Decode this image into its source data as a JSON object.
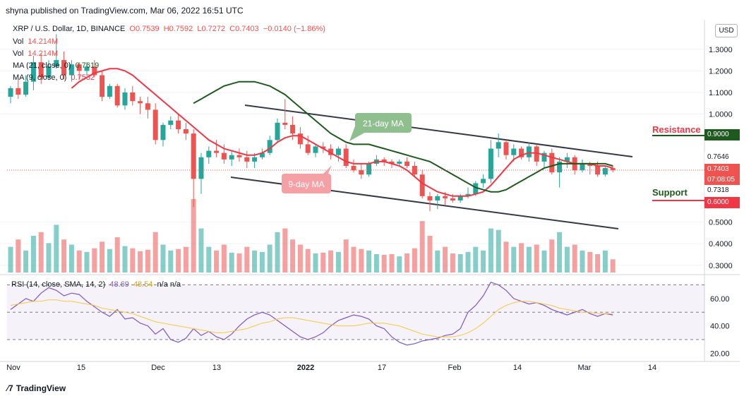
{
  "header": {
    "published": "shyna published on TradingView.com, Mar 06, 2022 16:51 UTC"
  },
  "legend": {
    "symbol": "XRP / U.S. Dollar, 1D, BINANCE",
    "open": "O0.7539",
    "high": "H0.7592",
    "low": "L0.7272",
    "close": "C0.7403",
    "change": "−0.0140 (−1.86%)",
    "vol1": "Vol",
    "vol1_value": "14.214M",
    "vol2": "Vol",
    "vol2_value": "14.214M",
    "ma21": "MA (21, close, 0)",
    "ma21_value": "0.7619",
    "ma9": "MA (9, close, 0)",
    "ma9_value": "0.7532"
  },
  "currency_button": "USD",
  "annotations": {
    "ma21_label": "21-day MA",
    "ma9_label": "9-day MA",
    "resistance": "Resistance",
    "support": "Support"
  },
  "price_tags": {
    "resistance_level": "0.9000",
    "ma21_tag": "0.7646",
    "last_price": "0.7403",
    "countdown": "07:08:05",
    "ma9_tag": "0.7318",
    "support_level": "0.6000"
  },
  "rsi_legend": {
    "name": "RSI (14, close, SMA, 14, 2)",
    "rsi": "48.69",
    "sma": "48.54",
    "na": "n/a n/a"
  },
  "footer": {
    "brand": "TradingView"
  },
  "colors": {
    "up": "#26a69a",
    "down": "#ef5350",
    "ma9": "#f23645",
    "ma21": "#1e5a1e",
    "rsi": "#7e57c2",
    "rsi_sma": "#f5c842",
    "resistance": "#1e5a1e",
    "support": "#f23645"
  },
  "chart_data": [
    {
      "type": "candlestick",
      "title": "XRP / U.S. Dollar, 1D, BINANCE",
      "x_ticks": [
        "Nov",
        "15",
        "Dec",
        "13",
        "2022",
        "17",
        "Feb",
        "14",
        "Mar",
        "14"
      ],
      "y_ticks": [
        "1.3000",
        "1.2000",
        "1.1000",
        "1.0000",
        "0.5000",
        "0.4000",
        "0.3000"
      ],
      "ylim": [
        0.26,
        1.43
      ],
      "candles": [
        [
          1.08,
          1.13,
          1.05,
          1.12
        ],
        [
          1.12,
          1.16,
          1.07,
          1.09
        ],
        [
          1.09,
          1.18,
          1.08,
          1.15
        ],
        [
          1.15,
          1.27,
          1.11,
          1.24
        ],
        [
          1.24,
          1.28,
          1.14,
          1.17
        ],
        [
          1.17,
          1.25,
          1.16,
          1.22
        ],
        [
          1.22,
          1.37,
          1.21,
          1.25
        ],
        [
          1.25,
          1.29,
          1.16,
          1.18
        ],
        [
          1.18,
          1.25,
          1.15,
          1.23
        ],
        [
          1.23,
          1.24,
          1.16,
          1.2
        ],
        [
          1.2,
          1.24,
          1.18,
          1.22
        ],
        [
          1.22,
          1.25,
          1.17,
          1.18
        ],
        [
          1.18,
          1.2,
          1.06,
          1.08
        ],
        [
          1.08,
          1.14,
          1.07,
          1.13
        ],
        [
          1.13,
          1.14,
          1.03,
          1.04
        ],
        [
          1.04,
          1.12,
          1.02,
          1.1
        ],
        [
          1.1,
          1.13,
          1.04,
          1.06
        ],
        [
          1.06,
          1.08,
          1.0,
          1.05
        ],
        [
          1.05,
          1.08,
          0.98,
          1.02
        ],
        [
          1.02,
          1.05,
          0.86,
          0.88
        ],
        [
          0.88,
          0.96,
          0.85,
          0.95
        ],
        [
          0.95,
          0.99,
          0.93,
          0.97
        ],
        [
          0.97,
          1.0,
          0.91,
          0.93
        ],
        [
          0.93,
          0.96,
          0.88,
          0.91
        ],
        [
          0.91,
          0.93,
          0.57,
          0.7
        ],
        [
          0.7,
          0.82,
          0.63,
          0.8
        ],
        [
          0.8,
          0.85,
          0.77,
          0.83
        ],
        [
          0.83,
          0.88,
          0.8,
          0.82
        ],
        [
          0.82,
          0.86,
          0.77,
          0.79
        ],
        [
          0.79,
          0.83,
          0.76,
          0.81
        ],
        [
          0.81,
          0.84,
          0.78,
          0.8
        ],
        [
          0.8,
          0.83,
          0.75,
          0.78
        ],
        [
          0.78,
          0.82,
          0.75,
          0.8
        ],
        [
          0.8,
          0.84,
          0.79,
          0.82
        ],
        [
          0.82,
          0.9,
          0.81,
          0.88
        ],
        [
          0.88,
          0.98,
          0.87,
          0.96
        ],
        [
          0.96,
          1.07,
          0.93,
          0.95
        ],
        [
          0.95,
          0.99,
          0.88,
          0.91
        ],
        [
          0.91,
          0.94,
          0.84,
          0.86
        ],
        [
          0.86,
          0.9,
          0.81,
          0.82
        ],
        [
          0.82,
          0.86,
          0.8,
          0.85
        ],
        [
          0.85,
          0.87,
          0.82,
          0.84
        ],
        [
          0.84,
          0.86,
          0.79,
          0.81
        ],
        [
          0.81,
          0.85,
          0.78,
          0.84
        ],
        [
          0.84,
          0.86,
          0.75,
          0.76
        ],
        [
          0.76,
          0.79,
          0.73,
          0.74
        ],
        [
          0.74,
          0.77,
          0.7,
          0.72
        ],
        [
          0.72,
          0.78,
          0.71,
          0.77
        ],
        [
          0.77,
          0.81,
          0.76,
          0.79
        ],
        [
          0.79,
          0.8,
          0.76,
          0.78
        ],
        [
          0.78,
          0.79,
          0.75,
          0.77
        ],
        [
          0.77,
          0.79,
          0.76,
          0.78
        ],
        [
          0.78,
          0.8,
          0.75,
          0.76
        ],
        [
          0.76,
          0.78,
          0.71,
          0.72
        ],
        [
          0.72,
          0.74,
          0.61,
          0.62
        ],
        [
          0.62,
          0.64,
          0.55,
          0.6
        ],
        [
          0.6,
          0.63,
          0.56,
          0.62
        ],
        [
          0.62,
          0.64,
          0.58,
          0.61
        ],
        [
          0.61,
          0.63,
          0.59,
          0.6
        ],
        [
          0.6,
          0.63,
          0.59,
          0.62
        ],
        [
          0.62,
          0.66,
          0.61,
          0.63
        ],
        [
          0.63,
          0.69,
          0.62,
          0.68
        ],
        [
          0.68,
          0.72,
          0.66,
          0.7
        ],
        [
          0.7,
          0.88,
          0.68,
          0.84
        ],
        [
          0.84,
          0.91,
          0.8,
          0.87
        ],
        [
          0.87,
          0.88,
          0.79,
          0.81
        ],
        [
          0.81,
          0.86,
          0.78,
          0.84
        ],
        [
          0.84,
          0.85,
          0.79,
          0.8
        ],
        [
          0.8,
          0.87,
          0.78,
          0.85
        ],
        [
          0.85,
          0.86,
          0.76,
          0.78
        ],
        [
          0.78,
          0.83,
          0.75,
          0.82
        ],
        [
          0.82,
          0.84,
          0.72,
          0.73
        ],
        [
          0.73,
          0.8,
          0.66,
          0.78
        ],
        [
          0.78,
          0.82,
          0.75,
          0.8
        ],
        [
          0.8,
          0.81,
          0.72,
          0.74
        ],
        [
          0.74,
          0.79,
          0.73,
          0.77
        ],
        [
          0.77,
          0.78,
          0.72,
          0.76
        ],
        [
          0.76,
          0.78,
          0.71,
          0.72
        ],
        [
          0.72,
          0.76,
          0.71,
          0.75
        ],
        [
          0.75,
          0.76,
          0.73,
          0.74
        ]
      ],
      "ma9": [
        1.12,
        1.15,
        1.17,
        1.19,
        1.2,
        1.21,
        1.21,
        1.2,
        1.18,
        1.15,
        1.12,
        1.09,
        1.06,
        1.03,
        1.0,
        0.97,
        0.94,
        0.91,
        0.88,
        0.86,
        0.84,
        0.83,
        0.82,
        0.81,
        0.81,
        0.82,
        0.84,
        0.87,
        0.89,
        0.9,
        0.9,
        0.88,
        0.86,
        0.84,
        0.82,
        0.8,
        0.78,
        0.77,
        0.77,
        0.77,
        0.78,
        0.78,
        0.77,
        0.76,
        0.74,
        0.71,
        0.68,
        0.66,
        0.64,
        0.63,
        0.62,
        0.62,
        0.62,
        0.63,
        0.64,
        0.67,
        0.71,
        0.75,
        0.79,
        0.81,
        0.82,
        0.82,
        0.81,
        0.8,
        0.79,
        0.78,
        0.77,
        0.77,
        0.77,
        0.76,
        0.76,
        0.75
      ],
      "ma21": [
        1.05,
        1.07,
        1.09,
        1.11,
        1.13,
        1.14,
        1.15,
        1.15,
        1.15,
        1.14,
        1.13,
        1.11,
        1.09,
        1.06,
        1.03,
        1.0,
        0.97,
        0.94,
        0.91,
        0.89,
        0.87,
        0.86,
        0.86,
        0.86,
        0.85,
        0.84,
        0.83,
        0.82,
        0.81,
        0.8,
        0.79,
        0.78,
        0.76,
        0.74,
        0.72,
        0.7,
        0.68,
        0.66,
        0.65,
        0.64,
        0.64,
        0.65,
        0.67,
        0.69,
        0.71,
        0.73,
        0.75,
        0.76,
        0.77,
        0.77,
        0.77,
        0.77,
        0.77,
        0.77,
        0.77,
        0.76
      ],
      "volume": [
        0.35,
        0.45,
        0.3,
        0.5,
        0.55,
        0.4,
        0.65,
        0.45,
        0.38,
        0.3,
        0.28,
        0.33,
        0.42,
        0.32,
        0.48,
        0.36,
        0.33,
        0.29,
        0.31,
        0.55,
        0.38,
        0.3,
        0.32,
        0.35,
        1.0,
        0.6,
        0.35,
        0.3,
        0.38,
        0.27,
        0.26,
        0.35,
        0.3,
        0.28,
        0.38,
        0.55,
        0.6,
        0.45,
        0.38,
        0.32,
        0.26,
        0.27,
        0.3,
        0.28,
        0.45,
        0.35,
        0.32,
        0.3,
        0.25,
        0.24,
        0.25,
        0.22,
        0.26,
        0.33,
        0.7,
        0.5,
        0.3,
        0.35,
        0.26,
        0.25,
        0.28,
        0.35,
        0.3,
        0.6,
        0.58,
        0.42,
        0.35,
        0.4,
        0.35,
        0.38,
        0.3,
        0.45,
        0.55,
        0.35,
        0.38,
        0.3,
        0.28,
        0.25,
        0.3,
        0.18
      ]
    },
    {
      "type": "line",
      "title": "RSI (14, close, SMA, 14, 2)",
      "y_ticks": [
        "60.00",
        "40.00",
        "20.00"
      ],
      "ylim": [
        15,
        77
      ],
      "bands": [
        70,
        50,
        30
      ],
      "series": [
        {
          "name": "RSI",
          "values": [
            52,
            56,
            60,
            58,
            64,
            68,
            66,
            62,
            64,
            63,
            58,
            54,
            50,
            47,
            52,
            45,
            46,
            42,
            40,
            34,
            38,
            30,
            28,
            31,
            38,
            33,
            36,
            32,
            30,
            34,
            40,
            45,
            48,
            50,
            48,
            44,
            40,
            36,
            32,
            30,
            32,
            35,
            40,
            44,
            46,
            48,
            47,
            45,
            40,
            38,
            32,
            28,
            26,
            27,
            29,
            30,
            31,
            33,
            34,
            38,
            50,
            55,
            62,
            72,
            70,
            66,
            60,
            58,
            56,
            57,
            55,
            52,
            50,
            48,
            50,
            52,
            49,
            47,
            49,
            48
          ]
        },
        {
          "name": "SMA",
          "values": [
            55,
            56,
            57,
            58,
            58,
            59,
            59,
            58,
            58,
            57,
            56,
            55,
            53,
            52,
            51,
            50,
            49,
            47,
            45,
            43,
            42,
            41,
            40,
            39,
            38,
            37,
            36,
            35,
            35,
            36,
            37,
            38,
            40,
            42,
            43,
            45,
            46,
            46,
            45,
            44,
            43,
            42,
            41,
            40,
            40,
            40,
            41,
            42,
            42,
            42,
            41,
            40,
            38,
            36,
            34,
            33,
            32,
            32,
            32,
            33,
            35,
            38,
            42,
            47,
            52,
            55,
            57,
            58,
            58,
            57,
            56,
            55,
            53,
            52,
            51,
            50,
            50,
            49,
            49,
            49
          ]
        }
      ]
    }
  ]
}
